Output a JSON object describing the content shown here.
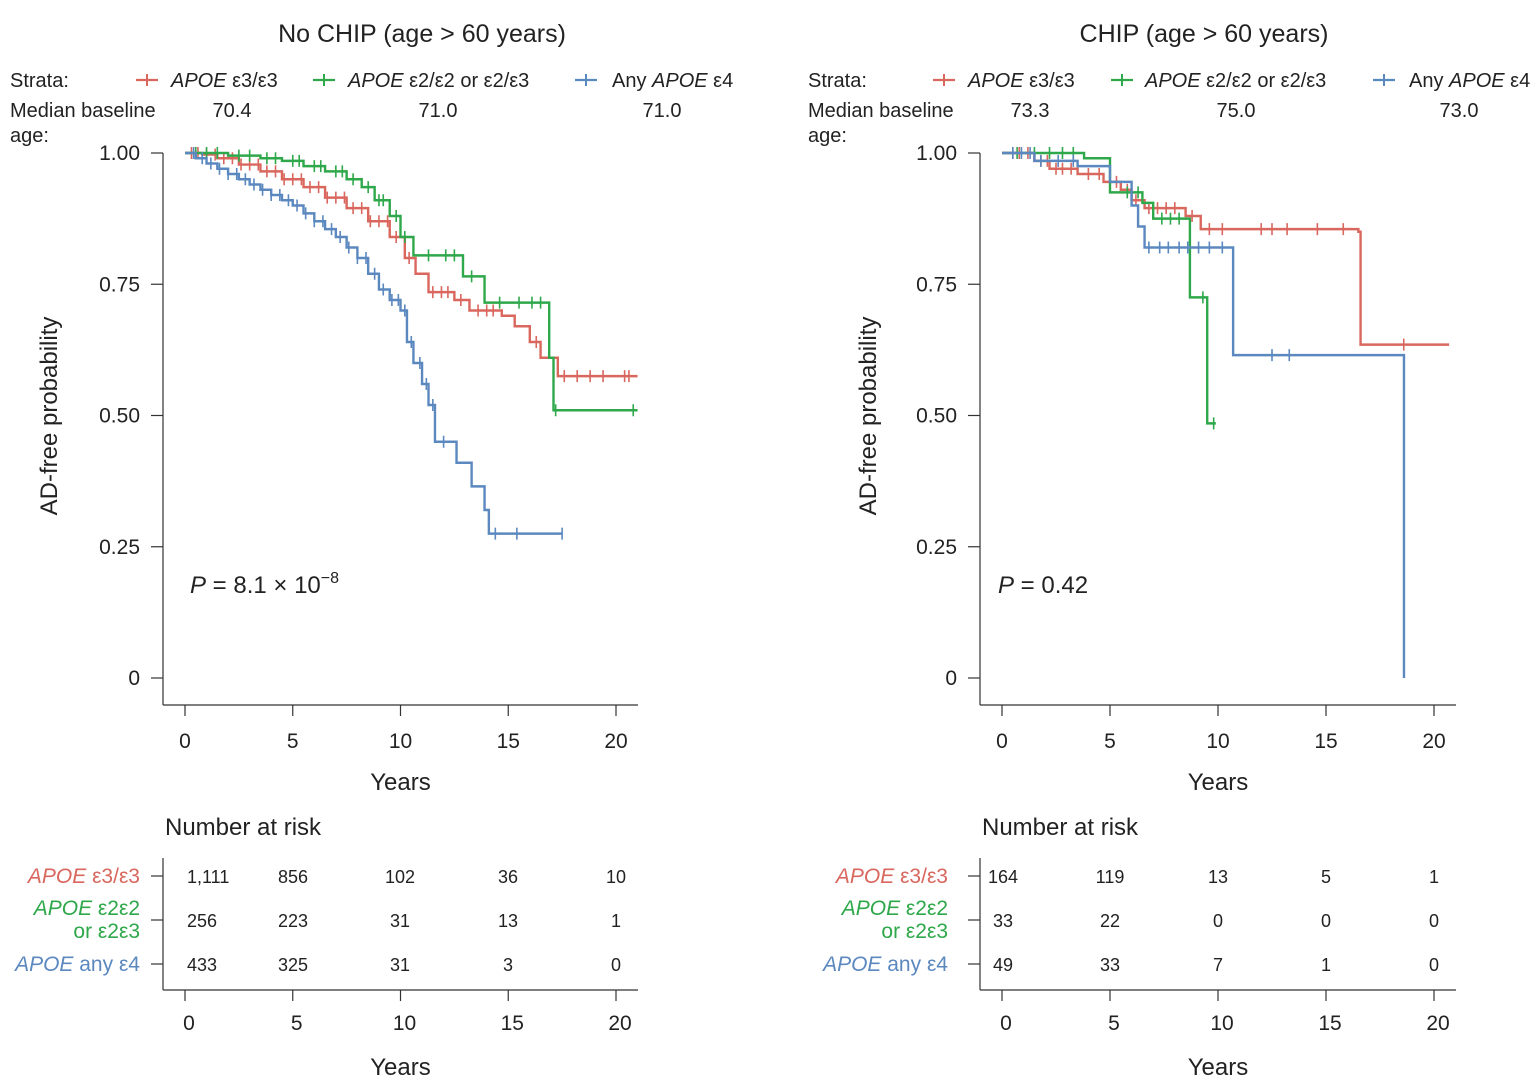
{
  "colors": {
    "e3e3": "#d9675e",
    "e2": "#2ea84a",
    "e4": "#5b88bf",
    "axis": "#333333"
  },
  "chart_data": [
    {
      "type": "line",
      "subtype": "kaplan-meier",
      "title": "No CHIP (age > 60 years)",
      "strata_label": "Strata:",
      "median_label_1": "Median baseline",
      "median_label_2": "age:",
      "xlabel": "Years",
      "ylabel": "AD-free probability",
      "xlim": [
        -1,
        21
      ],
      "ylim": [
        0,
        1
      ],
      "xticks": [
        "0",
        "5",
        "10",
        "15",
        "20"
      ],
      "yticks": [
        "0",
        "0.25",
        "0.50",
        "0.75",
        "1.00"
      ],
      "pvalue": {
        "prefix": "P",
        "text": " = 8.1 × 10",
        "exp": "−8"
      },
      "risk_title": "Number at risk",
      "series": [
        {
          "key": "e3e3",
          "legend_it": "APOE",
          "legend_rest": " ε3/ε3",
          "median_age": "70.4",
          "risk_label_1_it": "APOE",
          "risk_label_1_rest": " ε3/ε3",
          "risk_label_2": "",
          "risk": [
            "1,111",
            "856",
            "102",
            "36",
            "10"
          ],
          "steps": [
            [
              0,
              1.0
            ],
            [
              0.8,
              0.997
            ],
            [
              1.5,
              0.99
            ],
            [
              2.5,
              0.978
            ],
            [
              3.5,
              0.965
            ],
            [
              4.5,
              0.95
            ],
            [
              5.5,
              0.935
            ],
            [
              6.5,
              0.915
            ],
            [
              7.5,
              0.895
            ],
            [
              8.5,
              0.87
            ],
            [
              9.5,
              0.84
            ],
            [
              10.2,
              0.8
            ],
            [
              10.7,
              0.77
            ],
            [
              11.3,
              0.735
            ],
            [
              12.5,
              0.72
            ],
            [
              13.2,
              0.7
            ],
            [
              14.7,
              0.69
            ],
            [
              15.3,
              0.67
            ],
            [
              16,
              0.64
            ],
            [
              16.5,
              0.61
            ],
            [
              17.3,
              0.575
            ],
            [
              21,
              0.575
            ]
          ],
          "censors": [
            0.3,
            0.6,
            1,
            1.4,
            1.8,
            2.2,
            2.6,
            3,
            3.4,
            3.8,
            4.2,
            4.6,
            5,
            5.4,
            5.8,
            6.2,
            6.6,
            7,
            7.4,
            7.8,
            8.2,
            8.6,
            9,
            9.4,
            9.8,
            10.4,
            11.5,
            11.9,
            12.2,
            12.8,
            13.6,
            14,
            14.3,
            16.3,
            17.6,
            18.2,
            18.8,
            19.4,
            20.4,
            20.6
          ]
        },
        {
          "key": "e2",
          "legend_it": "APOE",
          "legend_rest": " ε2/ε2 or ε2/ε3",
          "median_age": "71.0",
          "risk_label_1_it": "APOE",
          "risk_label_1_rest": " ε2ε2",
          "risk_label_2": "or ε2ε3",
          "risk": [
            "256",
            "223",
            "31",
            "13",
            "1"
          ],
          "steps": [
            [
              0,
              1.0
            ],
            [
              2,
              0.995
            ],
            [
              3.5,
              0.99
            ],
            [
              4.5,
              0.985
            ],
            [
              5.5,
              0.975
            ],
            [
              6.5,
              0.965
            ],
            [
              7.5,
              0.95
            ],
            [
              8.2,
              0.935
            ],
            [
              8.8,
              0.91
            ],
            [
              9.5,
              0.88
            ],
            [
              10,
              0.84
            ],
            [
              10.6,
              0.805
            ],
            [
              12.9,
              0.765
            ],
            [
              13.9,
              0.715
            ],
            [
              16.9,
              0.61
            ],
            [
              17.1,
              0.51
            ],
            [
              21,
              0.51
            ]
          ],
          "censors": [
            0.5,
            1,
            1.5,
            2.5,
            3,
            3.8,
            4.2,
            5,
            5.3,
            6,
            6.3,
            7,
            7.3,
            7.8,
            8.5,
            9,
            9.2,
            9.8,
            10.2,
            11.3,
            12.1,
            12.5,
            13.3,
            14.6,
            15.5,
            16.1,
            16.5,
            17.2,
            20.8
          ]
        },
        {
          "key": "e4",
          "legend_it": "APOE",
          "legend_rest": " ε4",
          "legend_pre": "Any ",
          "median_age": "71.0",
          "risk_label_1_it": "APOE",
          "risk_label_1_rest": " any ε4",
          "risk_label_2": "",
          "risk": [
            "433",
            "325",
            "31",
            "3",
            "0"
          ],
          "steps": [
            [
              0,
              1.0
            ],
            [
              0.5,
              0.99
            ],
            [
              1,
              0.98
            ],
            [
              1.5,
              0.97
            ],
            [
              2,
              0.96
            ],
            [
              2.5,
              0.95
            ],
            [
              3,
              0.94
            ],
            [
              3.5,
              0.93
            ],
            [
              4,
              0.92
            ],
            [
              4.5,
              0.91
            ],
            [
              5,
              0.9
            ],
            [
              5.5,
              0.885
            ],
            [
              6,
              0.87
            ],
            [
              6.5,
              0.855
            ],
            [
              7,
              0.84
            ],
            [
              7.5,
              0.82
            ],
            [
              8,
              0.8
            ],
            [
              8.5,
              0.77
            ],
            [
              9,
              0.74
            ],
            [
              9.5,
              0.72
            ],
            [
              10,
              0.7
            ],
            [
              10.3,
              0.64
            ],
            [
              10.6,
              0.6
            ],
            [
              11,
              0.56
            ],
            [
              11.3,
              0.52
            ],
            [
              11.6,
              0.45
            ],
            [
              12.6,
              0.41
            ],
            [
              13.3,
              0.365
            ],
            [
              13.9,
              0.32
            ],
            [
              14.1,
              0.275
            ],
            [
              17.5,
              0.275
            ]
          ],
          "censors": [
            0.4,
            0.8,
            1.2,
            1.6,
            2,
            2.4,
            2.8,
            3.2,
            3.6,
            4,
            4.4,
            4.8,
            5.2,
            5.6,
            6,
            6.4,
            6.8,
            7.2,
            7.6,
            8,
            8.4,
            8.8,
            9.2,
            9.6,
            9.9,
            10.2,
            10.5,
            10.9,
            11.2,
            11.5,
            12,
            14.4,
            15.4,
            17.5
          ]
        }
      ]
    },
    {
      "type": "line",
      "subtype": "kaplan-meier",
      "title": "CHIP (age > 60 years)",
      "strata_label": "Strata:",
      "median_label_1": "Median baseline",
      "median_label_2": "age:",
      "xlabel": "Years",
      "ylabel": "AD-free probability",
      "xlim": [
        -1,
        21
      ],
      "ylim": [
        0,
        1
      ],
      "xticks": [
        "0",
        "5",
        "10",
        "15",
        "20"
      ],
      "yticks": [
        "0",
        "0.25",
        "0.50",
        "0.75",
        "1.00"
      ],
      "pvalue": {
        "prefix": "P",
        "text": " = 0.42",
        "exp": ""
      },
      "risk_title": "Number at risk",
      "series": [
        {
          "key": "e3e3",
          "legend_it": "APOE",
          "legend_rest": " ε3/ε3",
          "median_age": "73.3",
          "risk_label_1_it": "APOE",
          "risk_label_1_rest": " ε3/ε3",
          "risk_label_2": "",
          "risk": [
            "164",
            "119",
            "13",
            "5",
            "1"
          ],
          "steps": [
            [
              0,
              1.0
            ],
            [
              1.5,
              0.985
            ],
            [
              2.2,
              0.97
            ],
            [
              3.5,
              0.96
            ],
            [
              4.7,
              0.945
            ],
            [
              5.5,
              0.93
            ],
            [
              6,
              0.91
            ],
            [
              6.6,
              0.895
            ],
            [
              8.5,
              0.88
            ],
            [
              9.2,
              0.855
            ],
            [
              16.5,
              0.85
            ],
            [
              16.6,
              0.635
            ],
            [
              20.7,
              0.635
            ]
          ],
          "censors": [
            0.5,
            0.8,
            1.2,
            1.8,
            2.1,
            2.5,
            2.8,
            3.2,
            4,
            4.5,
            5,
            5.3,
            5.8,
            6.2,
            6.8,
            7.2,
            7.6,
            8,
            8.8,
            9.6,
            10.2,
            12,
            12.5,
            13.2,
            14.6,
            15.8,
            18.6
          ]
        },
        {
          "key": "e2",
          "legend_it": "APOE",
          "legend_rest": " ε2/ε2 or ε2/ε3",
          "median_age": "75.0",
          "risk_label_1_it": "APOE",
          "risk_label_1_rest": " ε2ε2",
          "risk_label_2": "or ε2ε3",
          "risk": [
            "33",
            "22",
            "0",
            "0",
            "0"
          ],
          "steps": [
            [
              0,
              1.0
            ],
            [
              3.8,
              0.99
            ],
            [
              5,
              0.925
            ],
            [
              6.5,
              0.905
            ],
            [
              7,
              0.875
            ],
            [
              8.7,
              0.725
            ],
            [
              9.5,
              0.485
            ],
            [
              9.9,
              0.485
            ]
          ],
          "censors": [
            0.7,
            1.5,
            2.2,
            2.8,
            3.3,
            5.8,
            6.3,
            7.4,
            7.8,
            8.2,
            9.3,
            9.8
          ]
        },
        {
          "key": "e4",
          "legend_it": "APOE",
          "legend_rest": " ε4",
          "legend_pre": "Any ",
          "median_age": "73.0",
          "risk_label_1_it": "APOE",
          "risk_label_1_rest": " any ε4",
          "risk_label_2": "",
          "risk": [
            "49",
            "33",
            "7",
            "1",
            "0"
          ],
          "steps": [
            [
              0,
              1.0
            ],
            [
              1.5,
              0.985
            ],
            [
              3.5,
              0.975
            ],
            [
              5,
              0.945
            ],
            [
              6,
              0.9
            ],
            [
              6.3,
              0.86
            ],
            [
              6.6,
              0.82
            ],
            [
              10.7,
              0.615
            ],
            [
              18.6,
              0.615
            ],
            [
              18.61,
              0.0
            ]
          ],
          "censors": [
            0.5,
            0.9,
            1.3,
            1.8,
            2.6,
            3.3,
            6.8,
            7.3,
            7.7,
            8.2,
            8.6,
            9.1,
            9.6,
            10.2,
            12.5,
            13.3
          ]
        }
      ]
    }
  ]
}
